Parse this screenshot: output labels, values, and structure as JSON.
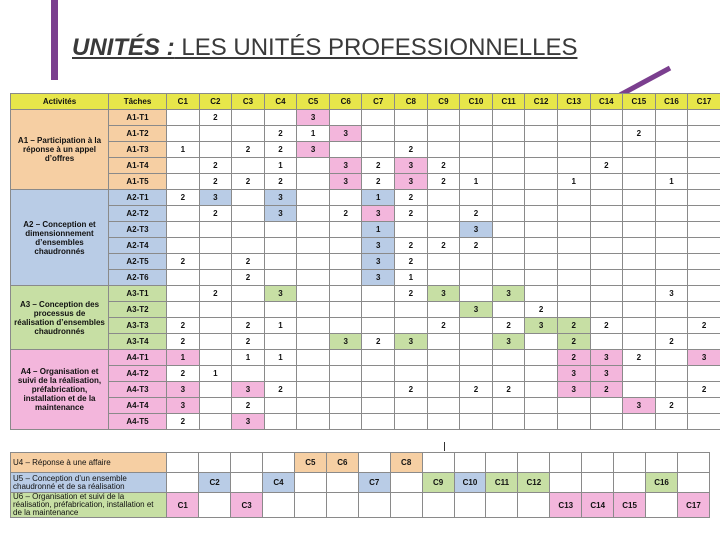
{
  "title": {
    "bold": "UNITÉS :",
    "rest": " LES UNITÉS PROFESSIONNELLES"
  },
  "colors": {
    "accent": "#7b3f8f",
    "header": "#e7e64a",
    "a1": "#f6cfa3",
    "a2": "#b9cce6",
    "a3": "#c7dfa4",
    "a4": "#f3b6dc"
  },
  "headers": [
    "Activités",
    "Tâches",
    "C1",
    "C2",
    "C3",
    "C4",
    "C5",
    "C6",
    "C7",
    "C8",
    "C9",
    "C10",
    "C11",
    "C12",
    "C13",
    "C14",
    "C15",
    "C16",
    "C17"
  ],
  "activities": [
    {
      "key": "a1",
      "label": "A1 – Participation à la réponse à un appel d’offres",
      "rows": [
        [
          "A1-T1",
          "",
          "2",
          "",
          "",
          "3",
          "",
          "",
          "",
          "",
          "",
          "",
          "",
          "",
          "",
          "",
          "",
          ""
        ],
        [
          "A1-T2",
          "",
          "",
          "",
          "2",
          "1",
          "3",
          "",
          "",
          "",
          "",
          "",
          "",
          "",
          "",
          "2",
          "",
          ""
        ],
        [
          "A1-T3",
          "1",
          "",
          "2",
          "2",
          "3",
          "",
          "",
          "2",
          "",
          "",
          "",
          "",
          "",
          "",
          "",
          "",
          ""
        ],
        [
          "A1-T4",
          "",
          "2",
          "",
          "1",
          "",
          "3",
          "2",
          "3",
          "2",
          "",
          "",
          "",
          "",
          "2",
          "",
          "",
          ""
        ],
        [
          "A1-T5",
          "",
          "2",
          "2",
          "2",
          "",
          "3",
          "2",
          "3",
          "2",
          "1",
          "",
          "",
          "1",
          "",
          "",
          "1",
          ""
        ]
      ]
    },
    {
      "key": "a2",
      "label": "A2 – Conception et dimensionnement d’ensembles chaudronnés",
      "rows": [
        [
          "A2-T1",
          "2",
          "3",
          "",
          "3",
          "",
          "",
          "1",
          "2",
          "",
          "",
          "",
          "",
          "",
          "",
          "",
          "",
          ""
        ],
        [
          "A2-T2",
          "",
          "2",
          "",
          "3",
          "",
          "2",
          "3",
          "2",
          "",
          "2",
          "",
          "",
          "",
          "",
          "",
          "",
          ""
        ],
        [
          "A2-T3",
          "",
          "",
          "",
          "",
          "",
          "",
          "1",
          "",
          "",
          "3",
          "",
          "",
          "",
          "",
          "",
          "",
          ""
        ],
        [
          "A2-T4",
          "",
          "",
          "",
          "",
          "",
          "",
          "3",
          "2",
          "2",
          "2",
          "",
          "",
          "",
          "",
          "",
          "",
          ""
        ],
        [
          "A2-T5",
          "2",
          "",
          "2",
          "",
          "",
          "",
          "3",
          "2",
          "",
          "",
          "",
          "",
          "",
          "",
          "",
          "",
          ""
        ],
        [
          "A2-T6",
          "",
          "",
          "2",
          "",
          "",
          "",
          "3",
          "1",
          "",
          "",
          "",
          "",
          "",
          "",
          "",
          "",
          ""
        ]
      ]
    },
    {
      "key": "a3",
      "label": "A3 – Conception des processus de réalisation d’ensembles chaudronnés",
      "rows": [
        [
          "A3-T1",
          "",
          "2",
          "",
          "3",
          "",
          "",
          "",
          "2",
          "3",
          "",
          "3",
          "",
          "",
          "",
          "",
          "3",
          ""
        ],
        [
          "A3-T2",
          "",
          "",
          "",
          "",
          "",
          "",
          "",
          "",
          "",
          "3",
          "",
          "2",
          "",
          "",
          "",
          "",
          ""
        ],
        [
          "A3-T3",
          "2",
          "",
          "2",
          "1",
          "",
          "",
          "",
          "",
          "2",
          "",
          "2",
          "3",
          "2",
          "2",
          "",
          "",
          "2"
        ],
        [
          "A3-T4",
          "2",
          "",
          "2",
          "",
          "",
          "3",
          "2",
          "3",
          "",
          "",
          "3",
          "",
          "2",
          "",
          "",
          "2",
          ""
        ]
      ]
    },
    {
      "key": "a4",
      "label": "A4 – Organisation et suivi de la réalisation, préfabrication, installation et de la maintenance",
      "rows": [
        [
          "A4-T1",
          "1",
          "",
          "1",
          "1",
          "",
          "",
          "",
          "",
          "",
          "",
          "",
          "",
          "2",
          "3",
          "2",
          "",
          "3"
        ],
        [
          "A4-T2",
          "2",
          "1",
          "",
          "",
          "",
          "",
          "",
          "",
          "",
          "",
          "",
          "",
          "3",
          "3",
          "",
          "",
          ""
        ],
        [
          "A4-T3",
          "3",
          "",
          "3",
          "2",
          "",
          "",
          "",
          "2",
          "",
          "2",
          "2",
          "",
          "3",
          "2",
          "",
          "",
          "2"
        ],
        [
          "A4-T4",
          "3",
          "",
          "2",
          "",
          "",
          "",
          "",
          "",
          "",
          "",
          "",
          "",
          "",
          "",
          "3",
          "2",
          ""
        ],
        [
          "A4-T5",
          "2",
          "",
          "3",
          "",
          "",
          "",
          "",
          "",
          "",
          "",
          "",
          "",
          "",
          "",
          "",
          "",
          ""
        ]
      ]
    }
  ],
  "units": [
    {
      "label": "U4 – Réponse à une affaire",
      "cells": [
        "",
        "",
        "",
        "",
        "C5",
        "C6",
        "",
        "C8",
        "",
        "",
        "",
        "",
        "",
        "",
        "",
        "",
        ""
      ]
    },
    {
      "label": "U5 – Conception d’un ensemble chaudronné et de sa réalisation",
      "cells": [
        "",
        "C2",
        "",
        "C4",
        "",
        "",
        "C7",
        "",
        "C9",
        "C10",
        "C11",
        "C12",
        "",
        "",
        "",
        "C16",
        ""
      ]
    },
    {
      "label": "U6 – Organisation et suivi de la réalisation, préfabrication, installation et de la maintenance",
      "cells": [
        "C1",
        "",
        "C3",
        "",
        "",
        "",
        "",
        "",
        "",
        "",
        "",
        "",
        "C13",
        "C14",
        "C15",
        "",
        "C17"
      ]
    }
  ]
}
